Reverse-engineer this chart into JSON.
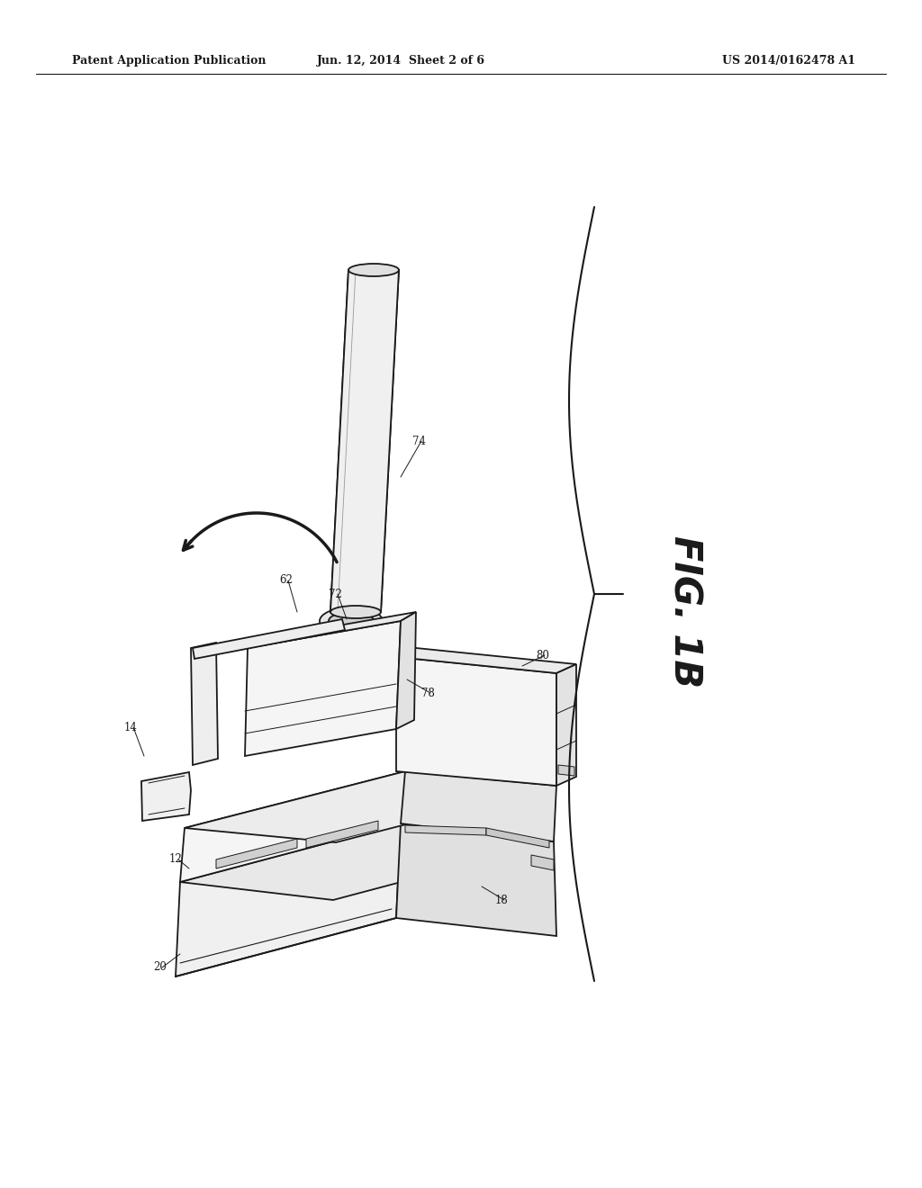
{
  "bg_color": "#ffffff",
  "line_color": "#1a1a1a",
  "header_left": "Patent Application Publication",
  "header_center": "Jun. 12, 2014  Sheet 2 of 6",
  "header_right": "US 2014/0162478 A1",
  "fig_label": "FIG. 1B",
  "lw": 1.3
}
